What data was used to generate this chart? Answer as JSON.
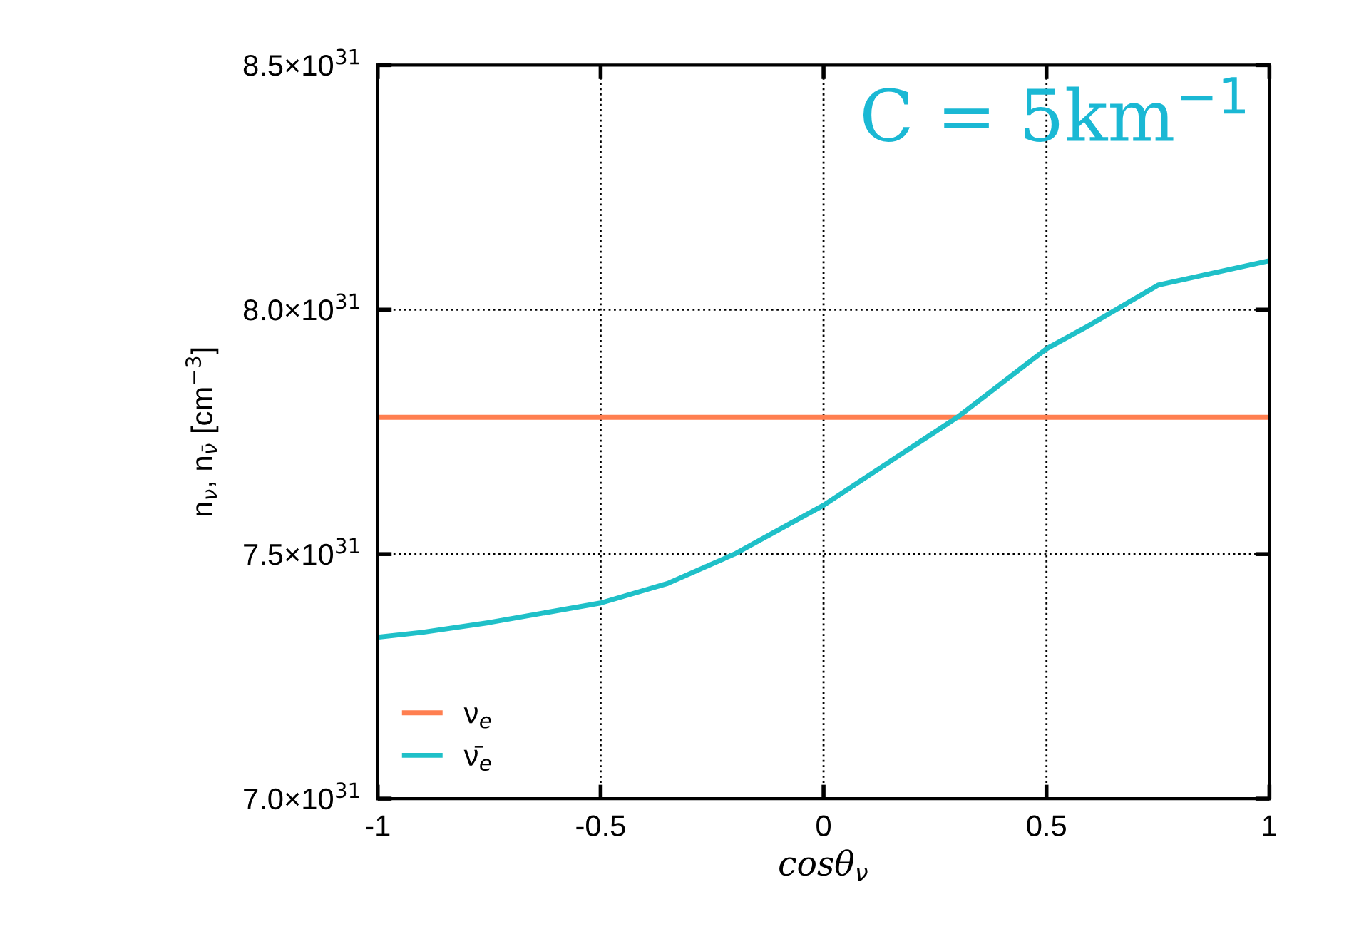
{
  "chart_data": {
    "type": "line",
    "xlabel": "cosθ$_{ν}$",
    "ylabel": "n$_{ν}$, n$_{ν̄}$ [cm$^{−3}$]",
    "annotations": [
      "C = 5km$^{−1}$"
    ],
    "series": [
      {
        "name": "ν$_{e}$",
        "color": "#ff7f50",
        "x": [
          -1,
          1
        ],
        "values": [
          7.78e+31,
          7.78e+31
        ]
      },
      {
        "name": "ν̄$_{e}$",
        "color": "#1fc0c8",
        "x": [
          -1,
          -0.9,
          -0.75,
          -0.5,
          -0.35,
          -0.2,
          -0.1,
          0,
          0.25,
          0.3,
          0.4,
          0.5,
          0.6,
          0.75,
          0.9,
          1
        ],
        "values": [
          7.33e+31,
          7.34e+31,
          7.36e+31,
          7.4e+31,
          7.44e+31,
          7.5e+31,
          7.55e+31,
          7.6e+31,
          7.75e+31,
          7.78e+31,
          7.85e+31,
          7.92e+31,
          7.97e+31,
          8.05e+31,
          8.08e+31,
          8.1e+31
        ]
      }
    ],
    "xlim": [
      -1,
      1
    ],
    "xticks": [
      -1,
      -0.5,
      0,
      0.5,
      1
    ],
    "ylim": [
      7e+31,
      8.5e+31
    ],
    "yticks": [
      {
        "value": 7e+31,
        "label": "7.0×10$^{31}$"
      },
      {
        "value": 7.5e+31,
        "label": "7.5×10$^{31}$"
      },
      {
        "value": 8e+31,
        "label": "8.0×10$^{31}$"
      },
      {
        "value": 8.5e+31,
        "label": "8.5×10$^{31}$"
      }
    ],
    "grid": true,
    "legend": "bottom left",
    "marker": "none",
    "line_style": "solid"
  }
}
